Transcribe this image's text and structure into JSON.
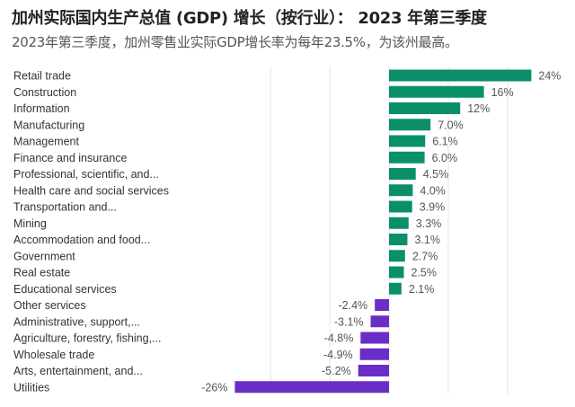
{
  "title": "加州实际国内生产总值 (GDP) 增长（按行业）： 2023 年第三季度",
  "subtitle": "2023年第三季度，加州零售业实际GDP增长率为每年23.5%，为该州最高。",
  "colors": {
    "positive": "#0b8f6b",
    "negative": "#6a2ec6",
    "grid": "#e3e3e3"
  },
  "chart_data": {
    "type": "bar",
    "orientation": "horizontal",
    "title": "加州实际国内生产总值 (GDP) 增长（按行业）： 2023 年第三季度",
    "subtitle": "2023年第三季度，加州零售业实际GDP增长率为每年23.5%，为该州最高。",
    "xlim": [
      -30,
      25
    ],
    "grid": true,
    "gridlines": [
      -20,
      -10,
      0,
      10,
      20
    ],
    "categories": [
      "Retail trade",
      "Construction",
      "Information",
      "Manufacturing",
      "Management",
      "Finance and insurance",
      "Professional, scientific, and...",
      "Health care and social services",
      "Transportation and...",
      "Mining",
      "Accommodation and food...",
      "Government",
      "Real estate",
      "Educational services",
      "Other services",
      "Administrative, support,...",
      "Agriculture, forestry, fishing,...",
      "Wholesale trade",
      "Arts, entertainment, and...",
      "Utilities"
    ],
    "values": [
      24,
      16,
      12,
      7.0,
      6.1,
      6.0,
      4.5,
      4.0,
      3.9,
      3.3,
      3.1,
      2.7,
      2.5,
      2.1,
      -2.4,
      -3.1,
      -4.8,
      -4.9,
      -5.2,
      -26
    ],
    "labels": [
      "24%",
      "16%",
      "12%",
      "7.0%",
      "6.1%",
      "6.0%",
      "4.5%",
      "4.0%",
      "3.9%",
      "3.3%",
      "3.1%",
      "2.7%",
      "2.5%",
      "2.1%",
      "-2.4%",
      "-3.1%",
      "-4.8%",
      "-4.9%",
      "-5.2%",
      "-26%"
    ]
  }
}
